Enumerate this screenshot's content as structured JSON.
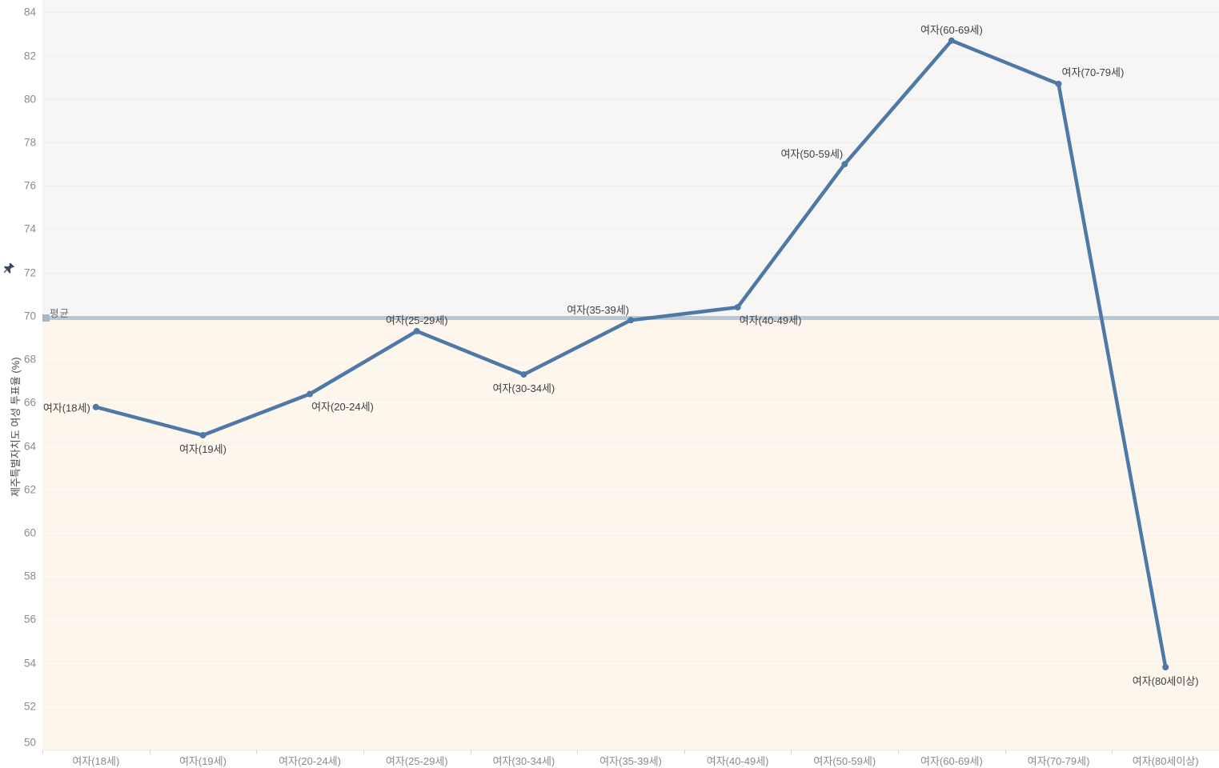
{
  "chart_data": {
    "type": "line",
    "title": "",
    "ylabel": "제주특별자치도 여성 투표율 (%)",
    "xlabel": "",
    "categories": [
      "여자(18세)",
      "여자(19세)",
      "여자(20-24세)",
      "여자(25-29세)",
      "여자(30-34세)",
      "여자(35-39세)",
      "여자(40-49세)",
      "여자(50-59세)",
      "여자(60-69세)",
      "여자(70-79세)",
      "여자(80세이상)"
    ],
    "values": [
      65.8,
      64.5,
      66.4,
      69.3,
      67.3,
      69.8,
      70.4,
      77.0,
      82.7,
      80.7,
      53.8
    ],
    "point_label_positions": [
      "left",
      "below",
      "below-right",
      "above",
      "below",
      "above-left",
      "below-right",
      "above-left",
      "above",
      "above-right",
      "below"
    ],
    "average_line": {
      "label": "평균",
      "value": 69.9
    },
    "ylim": [
      50,
      84.57
    ],
    "yticks": [
      84,
      82,
      80,
      78,
      76,
      74,
      72,
      70,
      68,
      66,
      64,
      62,
      60,
      58,
      56,
      54,
      52,
      50
    ],
    "grid": "horizontal-only",
    "legend": "none",
    "colors": {
      "line": "#4e79a7",
      "point": "#4e79a7",
      "average_line": "#b7c8d6",
      "average_handle": "#a3b8cb",
      "band_above_average": "#f7f6f4",
      "band_below_average": "#fdf6ec",
      "tick_text": "#8b8b8b",
      "point_label_text": "#3f3f3f",
      "pin_icon": "#3d4961"
    }
  }
}
